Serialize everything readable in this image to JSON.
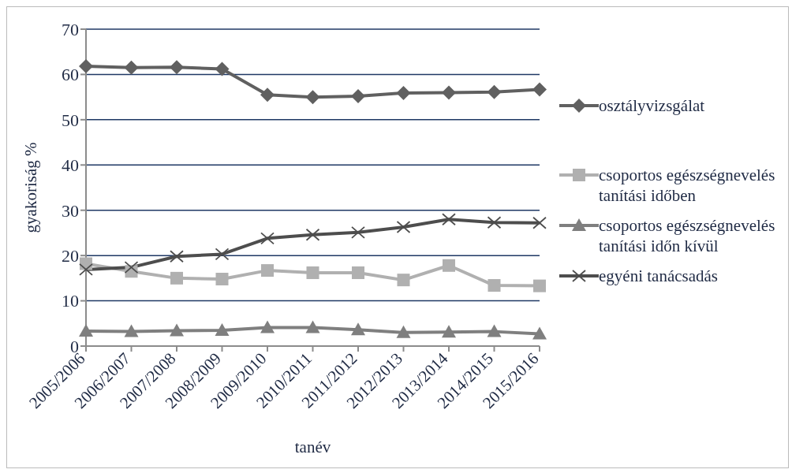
{
  "chart_data": {
    "type": "line",
    "xlabel": "tanév",
    "ylabel": "gyakoriság %",
    "categories": [
      "2005/2006",
      "2006/2007",
      "2007/2008",
      "2008/2009",
      "2009/2010",
      "2010/2011",
      "2011/2012",
      "2012/2013",
      "2013/2014",
      "2014/2015",
      "2015/2016"
    ],
    "series": [
      {
        "name": "osztályvizsgálat",
        "color": "#606060",
        "marker": "diamond",
        "values": [
          61.8,
          61.5,
          61.6,
          61.2,
          55.5,
          55.0,
          55.2,
          55.9,
          56.0,
          56.1,
          56.7
        ]
      },
      {
        "name": "csoportos egészségnevelés tanítási időben",
        "color": "#b0b0b0",
        "marker": "square",
        "values": [
          18.2,
          16.5,
          15.0,
          14.8,
          16.7,
          16.2,
          16.2,
          14.6,
          17.8,
          13.4,
          13.3
        ]
      },
      {
        "name": "csoportos egészségnevelés tanítási időn kívül",
        "color": "#7f7f7f",
        "marker": "triangle",
        "values": [
          3.3,
          3.2,
          3.4,
          3.5,
          4.1,
          4.1,
          3.6,
          3.0,
          3.1,
          3.2,
          2.7
        ]
      },
      {
        "name": "egyéni tanácsadás",
        "color": "#4d4d4d",
        "marker": "cross",
        "values": [
          16.9,
          17.4,
          19.8,
          20.3,
          23.8,
          24.6,
          25.1,
          26.3,
          28.0,
          27.3,
          27.2
        ]
      }
    ],
    "ylim": [
      0,
      70
    ],
    "yticks": [
      0,
      10,
      20,
      30,
      40,
      50,
      60,
      70
    ],
    "grid": "y",
    "legend": "right"
  }
}
